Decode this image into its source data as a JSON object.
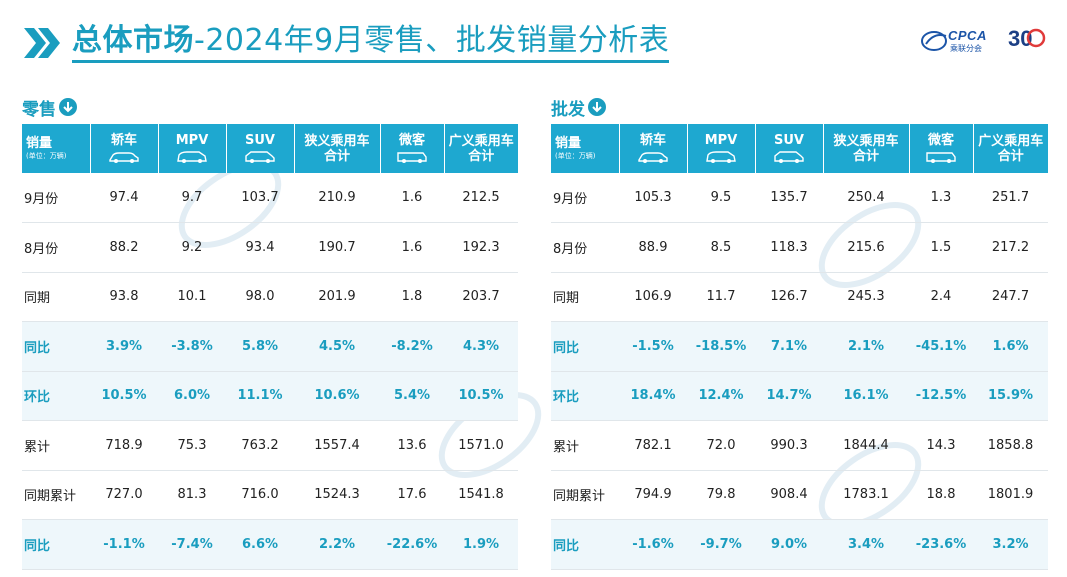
{
  "header": {
    "title_part1": "总体市场",
    "title_part2": "-2024年9月零售、批发销量分析表",
    "logo_text": "CPCA",
    "logo_sub": "乘联分会",
    "anniv_num": "30"
  },
  "retail": {
    "label": "零售",
    "columns": [
      "轿车",
      "MPV",
      "SUV",
      "狭义乘用车合计",
      "微客",
      "广义乘用车合计"
    ],
    "col_head_top": [
      "轿车",
      "MPV",
      "SUV",
      "狭义乘用车",
      "微客",
      "广义乘用车"
    ],
    "col_head_bottom": [
      "",
      "",
      "",
      "合计",
      "",
      "合计"
    ],
    "first_head": "销量",
    "unit": "(单位：万辆)",
    "rows": [
      {
        "label": "9月份",
        "values": [
          "97.4",
          "9.7",
          "103.7",
          "210.9",
          "1.6",
          "212.5"
        ],
        "hl": false
      },
      {
        "label": "8月份",
        "values": [
          "88.2",
          "9.2",
          "93.4",
          "190.7",
          "1.6",
          "192.3"
        ],
        "hl": false
      },
      {
        "label": "同期",
        "values": [
          "93.8",
          "10.1",
          "98.0",
          "201.9",
          "1.8",
          "203.7"
        ],
        "hl": false
      },
      {
        "label": "同比",
        "values": [
          "3.9%",
          "-3.8%",
          "5.8%",
          "4.5%",
          "-8.2%",
          "4.3%"
        ],
        "hl": true
      },
      {
        "label": "环比",
        "values": [
          "10.5%",
          "6.0%",
          "11.1%",
          "10.6%",
          "5.4%",
          "10.5%"
        ],
        "hl": true
      },
      {
        "label": "累计",
        "values": [
          "718.9",
          "75.3",
          "763.2",
          "1557.4",
          "13.6",
          "1571.0"
        ],
        "hl": false
      },
      {
        "label": "同期累计",
        "values": [
          "727.0",
          "81.3",
          "716.0",
          "1524.3",
          "17.6",
          "1541.8"
        ],
        "hl": false
      },
      {
        "label": "同比",
        "values": [
          "-1.1%",
          "-7.4%",
          "6.6%",
          "2.2%",
          "-22.6%",
          "1.9%"
        ],
        "hl": true
      }
    ]
  },
  "wholesale": {
    "label": "批发",
    "col_head_top": [
      "轿车",
      "MPV",
      "SUV",
      "狭义乘用车",
      "微客",
      "广义乘用车"
    ],
    "col_head_bottom": [
      "",
      "",
      "",
      "合计",
      "",
      "合计"
    ],
    "first_head": "销量",
    "unit": "(单位：万辆)",
    "rows": [
      {
        "label": "9月份",
        "values": [
          "105.3",
          "9.5",
          "135.7",
          "250.4",
          "1.3",
          "251.7"
        ],
        "hl": false
      },
      {
        "label": "8月份",
        "values": [
          "88.9",
          "8.5",
          "118.3",
          "215.6",
          "1.5",
          "217.2"
        ],
        "hl": false
      },
      {
        "label": "同期",
        "values": [
          "106.9",
          "11.7",
          "126.7",
          "245.3",
          "2.4",
          "247.7"
        ],
        "hl": false
      },
      {
        "label": "同比",
        "values": [
          "-1.5%",
          "-18.5%",
          "7.1%",
          "2.1%",
          "-45.1%",
          "1.6%"
        ],
        "hl": true
      },
      {
        "label": "环比",
        "values": [
          "18.4%",
          "12.4%",
          "14.7%",
          "16.1%",
          "-12.5%",
          "15.9%"
        ],
        "hl": true
      },
      {
        "label": "累计",
        "values": [
          "782.1",
          "72.0",
          "990.3",
          "1844.4",
          "14.3",
          "1858.8"
        ],
        "hl": false
      },
      {
        "label": "同期累计",
        "values": [
          "794.9",
          "79.8",
          "908.4",
          "1783.1",
          "18.8",
          "1801.9"
        ],
        "hl": false
      },
      {
        "label": "同比",
        "values": [
          "-1.6%",
          "-9.7%",
          "9.0%",
          "3.4%",
          "-23.6%",
          "3.2%"
        ],
        "hl": true
      }
    ]
  },
  "colors": {
    "accent": "#1a9dbf",
    "header_bg": "#1ea8d0",
    "highlight_bg": "#eef7fb"
  },
  "icons": {
    "chevrons": "double-chevron-right-icon",
    "down_arrow": "arrow-down-circle-icon",
    "car": "car-icon"
  }
}
